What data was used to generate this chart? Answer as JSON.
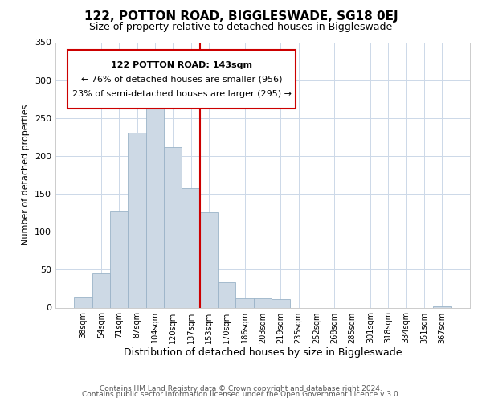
{
  "title": "122, POTTON ROAD, BIGGLESWADE, SG18 0EJ",
  "subtitle": "Size of property relative to detached houses in Biggleswade",
  "xlabel": "Distribution of detached houses by size in Biggleswade",
  "ylabel": "Number of detached properties",
  "footer_line1": "Contains HM Land Registry data © Crown copyright and database right 2024.",
  "footer_line2": "Contains public sector information licensed under the Open Government Licence v 3.0.",
  "bar_labels": [
    "38sqm",
    "54sqm",
    "71sqm",
    "87sqm",
    "104sqm",
    "120sqm",
    "137sqm",
    "153sqm",
    "170sqm",
    "186sqm",
    "203sqm",
    "219sqm",
    "235sqm",
    "252sqm",
    "268sqm",
    "285sqm",
    "301sqm",
    "318sqm",
    "334sqm",
    "351sqm",
    "367sqm"
  ],
  "bar_heights": [
    13,
    45,
    127,
    231,
    281,
    212,
    157,
    126,
    33,
    12,
    12,
    11,
    0,
    0,
    0,
    0,
    0,
    0,
    0,
    0,
    2
  ],
  "bar_color": "#cdd9e5",
  "bar_edge_color": "#9ab3c8",
  "vline_x_index": 7,
  "vline_color": "#cc0000",
  "ylim": [
    0,
    350
  ],
  "yticks": [
    0,
    50,
    100,
    150,
    200,
    250,
    300,
    350
  ],
  "annotation_box_title": "122 POTTON ROAD: 143sqm",
  "annotation_line1": "← 76% of detached houses are smaller (956)",
  "annotation_line2": "23% of semi-detached houses are larger (295) →",
  "title_fontsize": 11,
  "subtitle_fontsize": 9,
  "ylabel_fontsize": 8,
  "xlabel_fontsize": 9,
  "tick_fontsize": 8,
  "xtick_fontsize": 7,
  "footer_fontsize": 6.5,
  "ann_title_fontsize": 8,
  "ann_text_fontsize": 8
}
